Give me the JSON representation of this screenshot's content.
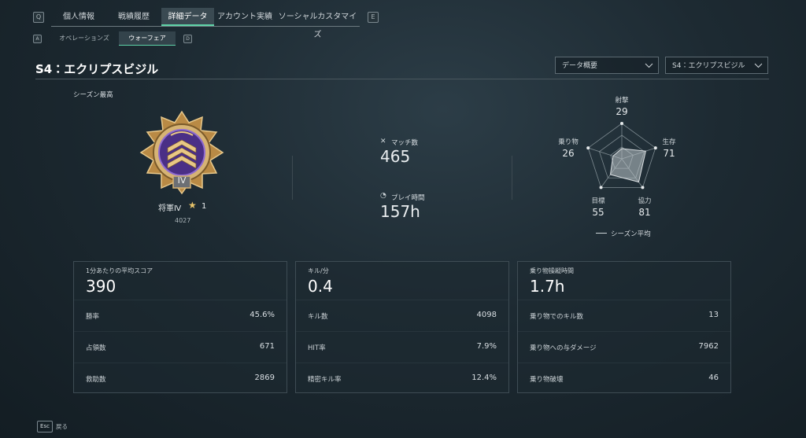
{
  "tabs": {
    "key_left": "Q",
    "items": [
      "個人情報",
      "戦績履歴",
      "詳細データ",
      "アカウント実績",
      "ソーシャルカスタマイズ"
    ],
    "active": 2,
    "key_right": "E"
  },
  "subtabs": {
    "key_left": "A",
    "items": [
      "オペレーションズ",
      "ウォーフェア"
    ],
    "active": 1,
    "key_right": "D"
  },
  "header": {
    "title": "S4：エクリプスビジル",
    "dropdowns": [
      "データ概要",
      "S4：エクリプスビジル"
    ]
  },
  "season_best": {
    "label": "シーズン最高",
    "badge": "IV",
    "rank": "将軍Ⅳ",
    "stars": 1,
    "score": 4027
  },
  "summary": [
    {
      "label": "マッチ数",
      "value": 465
    },
    {
      "label": "プレイ時間",
      "value": "157h"
    }
  ],
  "radar": {
    "axes": [
      {
        "label": "射撃",
        "value": 29
      },
      {
        "label": "生存",
        "value": 71
      },
      {
        "label": "協力",
        "value": 81
      },
      {
        "label": "目標",
        "value": 55
      },
      {
        "label": "乗り物",
        "value": 26
      }
    ],
    "legend": "シーズン平均"
  },
  "panels": [
    {
      "label": "1分あたりの平均スコア",
      "value": 390,
      "rows": [
        [
          "勝率",
          "45.6%"
        ],
        [
          "占領数",
          671
        ],
        [
          "救助数",
          2869
        ]
      ]
    },
    {
      "label": "キル/分",
      "value": 0.4,
      "rows": [
        [
          "キル数",
          4098
        ],
        [
          "HIT率",
          "7.9%"
        ],
        [
          "精密キル率",
          "12.4%"
        ]
      ]
    },
    {
      "label": "乗り物操縦時間",
      "value": "1.7h",
      "rows": [
        [
          "乗り物でのキル数",
          13
        ],
        [
          "乗り物への与ダメージ",
          7962
        ],
        [
          "乗り物破壊",
          46
        ]
      ]
    }
  ],
  "footer": {
    "key": "Esc",
    "label": "戻る"
  }
}
